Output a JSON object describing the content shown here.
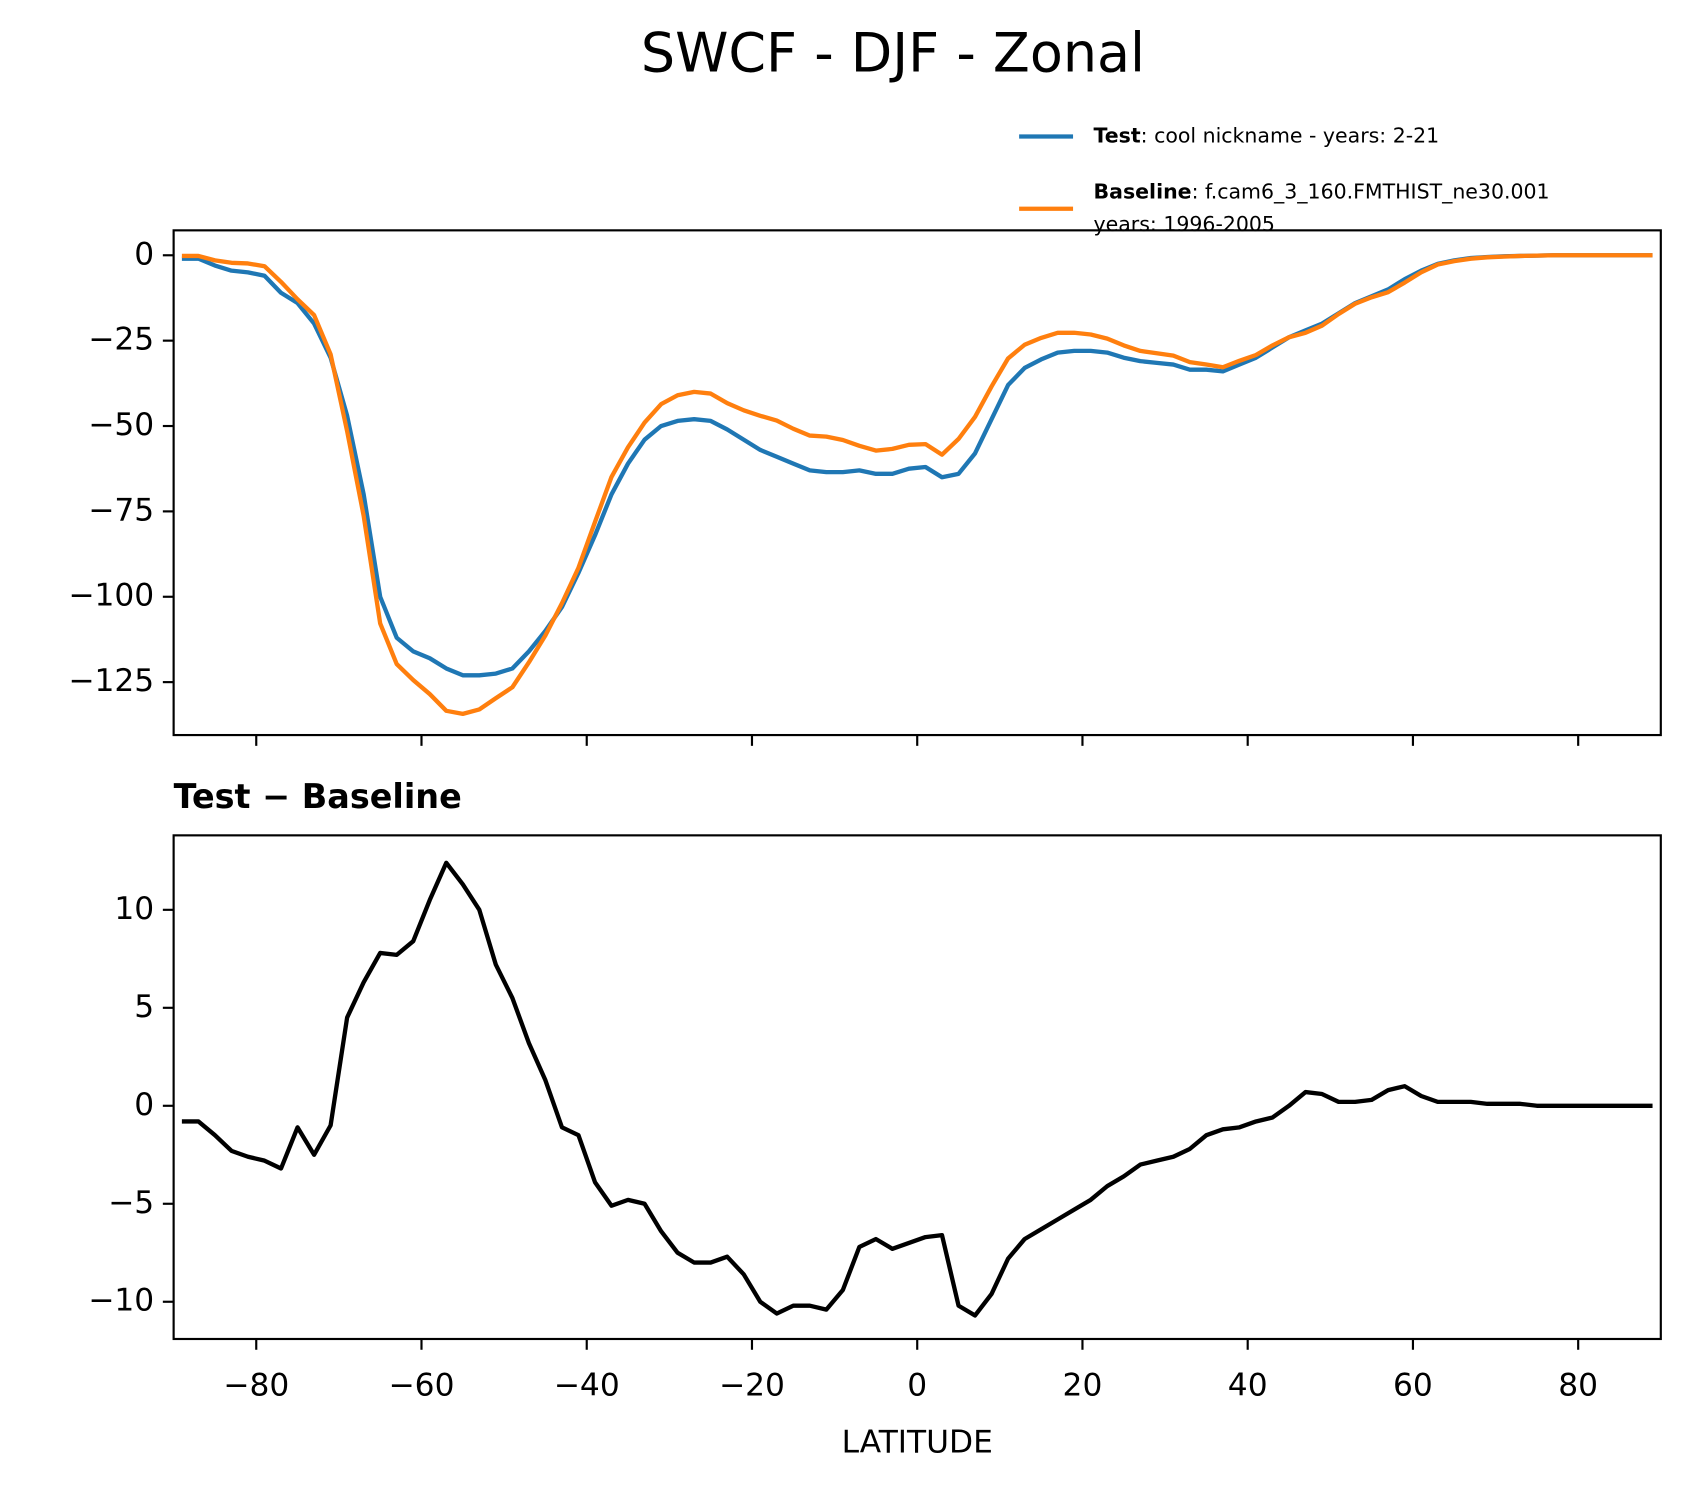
{
  "title": "SWCF - DJF - Zonal",
  "chart_data": [
    {
      "type": "line",
      "x": [
        -89,
        -87,
        -85,
        -83,
        -81,
        -79,
        -77,
        -75,
        -73,
        -71,
        -69,
        -67,
        -65,
        -63,
        -61,
        -59,
        -57,
        -55,
        -53,
        -51,
        -49,
        -47,
        -45,
        -43,
        -41,
        -39,
        -37,
        -35,
        -33,
        -31,
        -29,
        -27,
        -25,
        -23,
        -21,
        -19,
        -17,
        -15,
        -13,
        -11,
        -9,
        -7,
        -5,
        -3,
        -1,
        1,
        3,
        5,
        7,
        9,
        11,
        13,
        15,
        17,
        19,
        21,
        23,
        25,
        27,
        29,
        31,
        33,
        35,
        37,
        39,
        41,
        43,
        45,
        47,
        49,
        51,
        53,
        55,
        57,
        59,
        61,
        63,
        65,
        67,
        69,
        71,
        73,
        75,
        77,
        79,
        81,
        83,
        85,
        87,
        89
      ],
      "series": [
        {
          "name": "Test",
          "description": [
            ": cool nickname - years: 2-21"
          ],
          "color": "#1f77b4",
          "values": [
            -1,
            -1,
            -3,
            -4.5,
            -5,
            -6,
            -11,
            -14,
            -20,
            -30,
            -47,
            -70,
            -100,
            -112,
            -116,
            -118,
            -121,
            -123,
            -123,
            -122.5,
            -121,
            -116,
            -110,
            -103,
            -93,
            -82,
            -70,
            -61,
            -54,
            -50,
            -48.5,
            -48,
            -48.5,
            -51,
            -54,
            -57,
            -59,
            -61,
            -63,
            -63.5,
            -63.5,
            -63,
            -64,
            -64,
            -62.5,
            -62,
            -65,
            -64,
            -58,
            -48,
            -38,
            -33,
            -30.5,
            -28.5,
            -28,
            -28,
            -28.5,
            -30,
            -31,
            -31.5,
            -32,
            -33.5,
            -33.5,
            -34,
            -32,
            -30,
            -27,
            -24,
            -22,
            -20,
            -17,
            -14,
            -12,
            -10,
            -7,
            -4.5,
            -2.5,
            -1.5,
            -0.8,
            -0.5,
            -0.3,
            -0.2,
            -0.1,
            0,
            0,
            0,
            0,
            0,
            0,
            0
          ]
        },
        {
          "name": "Baseline",
          "description": [
            ": f.cam6_3_160.FMTHIST_ne30.001",
            "years: 1996-2005"
          ],
          "color": "#ff7f0e",
          "values": [
            -0.2,
            -0.2,
            -1.5,
            -2.2,
            -2.4,
            -3.2,
            -7.8,
            -12.9,
            -17.5,
            -29,
            -51.5,
            -76.3,
            -107.8,
            -119.7,
            -124.4,
            -128.5,
            -133.4,
            -134.3,
            -133,
            -129.7,
            -126.5,
            -119.2,
            -111.3,
            -101.9,
            -91.5,
            -78.1,
            -64.9,
            -56.2,
            -49,
            -43.6,
            -41,
            -40,
            -40.5,
            -43.3,
            -45.4,
            -47,
            -48.4,
            -50.8,
            -52.8,
            -53.1,
            -54.1,
            -55.8,
            -57.2,
            -56.7,
            -55.5,
            -55.3,
            -58.4,
            -53.8,
            -47.3,
            -38.4,
            -30.2,
            -26.2,
            -24.2,
            -22.7,
            -22.7,
            -23.2,
            -24.4,
            -26.4,
            -28,
            -28.7,
            -29.4,
            -31.3,
            -32,
            -32.8,
            -30.9,
            -29.2,
            -26.4,
            -24,
            -22.7,
            -20.6,
            -17.2,
            -14.2,
            -12.3,
            -10.8,
            -8,
            -5,
            -2.7,
            -1.7,
            -1,
            -0.6,
            -0.4,
            -0.2,
            -0.1,
            0,
            0,
            0,
            0,
            0,
            0,
            0
          ]
        }
      ],
      "ylim": [
        -140.5,
        7.3
      ],
      "yticks": [
        0,
        {
          "value": -25,
          "label": "−25"
        },
        {
          "value": -50,
          "label": "−50"
        },
        {
          "value": -75,
          "label": "−75"
        },
        {
          "value": -100,
          "label": "−100"
        },
        {
          "value": -125,
          "label": "−125"
        }
      ],
      "legend": "upper right"
    },
    {
      "type": "line",
      "title": "Test − Baseline",
      "xlabel": "LATITUDE",
      "x": [
        -89,
        -87,
        -85,
        -83,
        -81,
        -79,
        -77,
        -75,
        -73,
        -71,
        -69,
        -67,
        -65,
        -63,
        -61,
        -59,
        -57,
        -55,
        -53,
        -51,
        -49,
        -47,
        -45,
        -43,
        -41,
        -39,
        -37,
        -35,
        -33,
        -31,
        -29,
        -27,
        -25,
        -23,
        -21,
        -19,
        -17,
        -15,
        -13,
        -11,
        -9,
        -7,
        -5,
        -3,
        -1,
        1,
        3,
        5,
        7,
        9,
        11,
        13,
        15,
        17,
        19,
        21,
        23,
        25,
        27,
        29,
        31,
        33,
        35,
        37,
        39,
        41,
        43,
        45,
        47,
        49,
        51,
        53,
        55,
        57,
        59,
        61,
        63,
        65,
        67,
        69,
        71,
        73,
        75,
        77,
        79,
        81,
        83,
        85,
        87,
        89
      ],
      "series": [
        {
          "color": "#000000",
          "values": [
            -0.8,
            -0.8,
            -1.5,
            -2.3,
            -2.6,
            -2.8,
            -3.2,
            -1.1,
            -2.5,
            -1,
            4.5,
            6.3,
            7.8,
            7.7,
            8.4,
            10.5,
            12.4,
            11.3,
            10,
            7.2,
            5.5,
            3.2,
            1.3,
            -1.1,
            -1.5,
            -3.9,
            -5.1,
            -4.8,
            -5,
            -6.4,
            -7.5,
            -8,
            -8,
            -7.7,
            -8.6,
            -10,
            -10.6,
            -10.2,
            -10.2,
            -10.4,
            -9.4,
            -7.2,
            -6.8,
            -7.3,
            -7,
            -6.7,
            -6.6,
            -10.2,
            -10.7,
            -9.6,
            -7.8,
            -6.8,
            -6.3,
            -5.8,
            -5.3,
            -4.8,
            -4.1,
            -3.6,
            -3,
            -2.8,
            -2.6,
            -2.2,
            -1.5,
            -1.2,
            -1.1,
            -0.8,
            -0.6,
            0,
            0.7,
            0.6,
            0.2,
            0.2,
            0.3,
            0.8,
            1,
            0.5,
            0.2,
            0.2,
            0.2,
            0.1,
            0.1,
            0.1,
            0,
            0,
            0,
            0,
            0,
            0,
            0,
            0
          ]
        }
      ],
      "xlim": [
        -90,
        90
      ],
      "xticks": [
        {
          "value": -80,
          "label": "−80"
        },
        {
          "value": -60,
          "label": "−60"
        },
        {
          "value": -40,
          "label": "−40"
        },
        {
          "value": -20,
          "label": "−20"
        },
        0,
        20,
        40,
        60,
        80
      ],
      "ylim": [
        -11.9,
        13.8
      ],
      "yticks": [
        10,
        5,
        0,
        {
          "value": -5,
          "label": "−5"
        },
        {
          "value": -10,
          "label": "−10"
        }
      ]
    }
  ]
}
